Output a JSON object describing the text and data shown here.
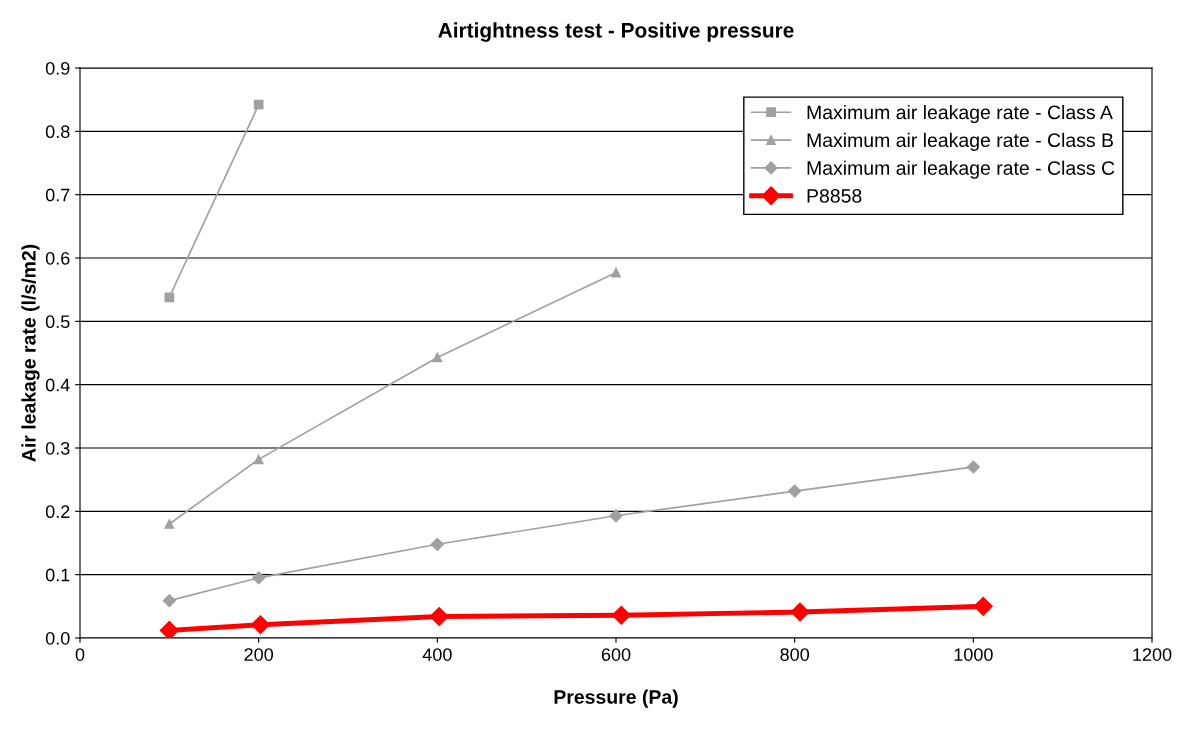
{
  "chart_data": {
    "type": "line",
    "title": "Airtightness test - Positive pressure",
    "xlabel": "Pressure (Pa)",
    "ylabel": "Air leakage rate (l/s/m2)",
    "xlim": [
      0,
      1200
    ],
    "xticks": [
      0,
      200,
      400,
      600,
      800,
      1000,
      1200
    ],
    "ylim": [
      0,
      0.9
    ],
    "yticks": [
      {
        "value": 0,
        "label": "0.0"
      },
      0.1,
      0.2,
      0.3,
      0.4,
      0.5,
      0.6,
      0.7,
      0.8,
      0.9
    ],
    "grid": "y",
    "legend": "top right",
    "series": [
      {
        "name": "Maximum air leakage rate - Class A",
        "color": "#a0a0a0",
        "marker": "square",
        "x": [
          100,
          200
        ],
        "values": [
          0.538,
          0.842
        ]
      },
      {
        "name": "Maximum air leakage rate - Class B",
        "color": "#a0a0a0",
        "marker": "triangle",
        "x": [
          100,
          200,
          400,
          600
        ],
        "values": [
          0.18,
          0.282,
          0.443,
          0.577
        ]
      },
      {
        "name": "Maximum air leakage rate - Class C",
        "color": "#a0a0a0",
        "marker": "diamond",
        "x": [
          100,
          200,
          400,
          600,
          800,
          1000
        ],
        "values": [
          0.059,
          0.095,
          0.148,
          0.193,
          0.232,
          0.27
        ]
      },
      {
        "name": "P8858",
        "color": "#ff0000",
        "marker": "diamond",
        "x": [
          100,
          202,
          402,
          606,
          806,
          1011
        ],
        "values": [
          0.012,
          0.021,
          0.034,
          0.036,
          0.041,
          0.05
        ]
      }
    ]
  }
}
